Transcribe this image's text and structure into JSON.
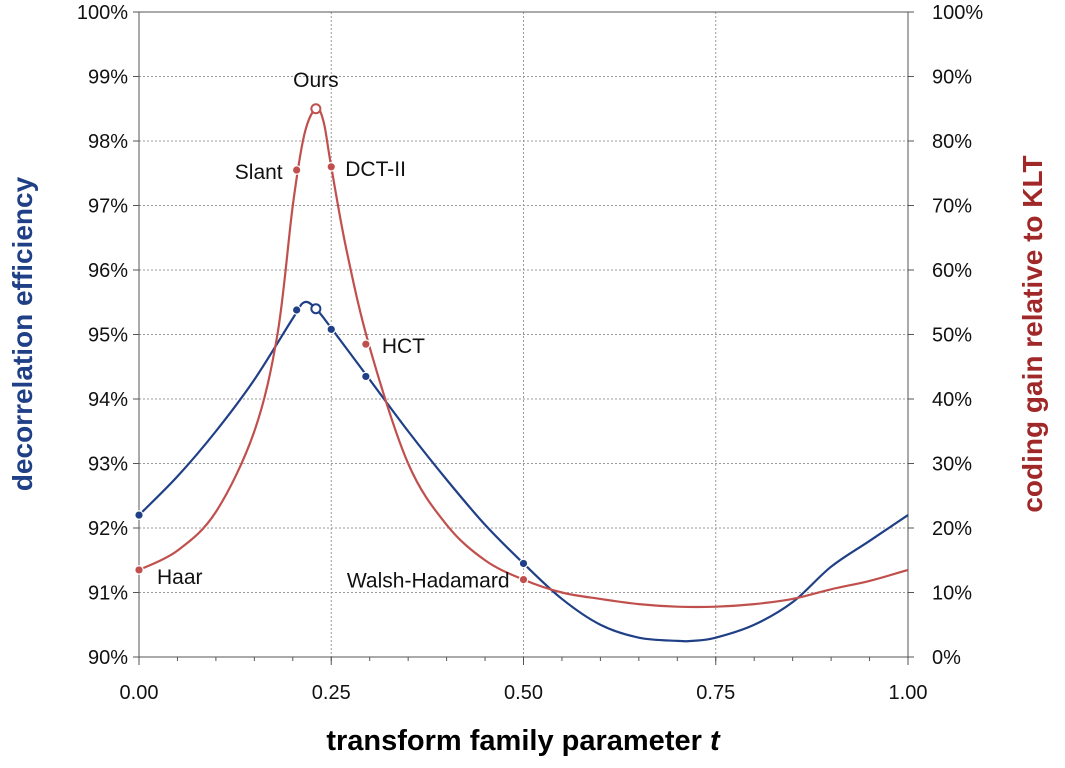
{
  "chart_data": {
    "type": "line",
    "xlabel": "transform family parameter",
    "xlabel_var": "t",
    "ylabel_left": "decorrelation efficiency",
    "ylabel_right": "coding gain relative to KLT",
    "xlim": [
      0,
      1
    ],
    "ylim_left": [
      90,
      100
    ],
    "ylim_right": [
      0,
      100
    ],
    "x_ticks": [
      0,
      0.25,
      0.5,
      0.75,
      1.0
    ],
    "x_tick_labels": [
      "0.00",
      "0.25",
      "0.50",
      "0.75",
      "1.00"
    ],
    "y_left_ticks": [
      90,
      91,
      92,
      93,
      94,
      95,
      96,
      97,
      98,
      99,
      100
    ],
    "y_left_tick_labels": [
      "90%",
      "91%",
      "92%",
      "93%",
      "94%",
      "95%",
      "96%",
      "97%",
      "98%",
      "99%",
      "100%"
    ],
    "y_right_ticks": [
      0,
      10,
      20,
      30,
      40,
      50,
      60,
      70,
      80,
      90,
      100
    ],
    "y_right_tick_labels": [
      "0%",
      "10%",
      "20%",
      "30%",
      "40%",
      "50%",
      "60%",
      "70%",
      "80%",
      "90%",
      "100%"
    ],
    "grid": true,
    "series": [
      {
        "axis": "left",
        "color": "#1f3f86",
        "x": [
          0,
          0.05,
          0.1,
          0.15,
          0.2,
          0.215,
          0.23,
          0.25,
          0.3,
          0.35,
          0.4,
          0.45,
          0.5,
          0.55,
          0.6,
          0.65,
          0.7,
          0.72,
          0.75,
          0.8,
          0.85,
          0.9,
          0.95,
          1.0
        ],
        "values": [
          92.2,
          92.8,
          93.5,
          94.3,
          95.25,
          95.5,
          95.4,
          95.1,
          94.3,
          93.5,
          92.75,
          92.05,
          91.45,
          90.9,
          90.5,
          90.3,
          90.25,
          90.25,
          90.3,
          90.5,
          90.85,
          91.4,
          91.8,
          92.2
        ],
        "markers": [
          {
            "x": 0,
            "y": 92.2,
            "label": ""
          },
          {
            "x": 0.205,
            "y": 95.38,
            "label": ""
          },
          {
            "x": 0.23,
            "y": 95.4,
            "label": "",
            "open": true
          },
          {
            "x": 0.25,
            "y": 95.08,
            "label": ""
          },
          {
            "x": 0.295,
            "y": 94.35,
            "label": ""
          },
          {
            "x": 0.5,
            "y": 91.45,
            "label": ""
          }
        ]
      },
      {
        "axis": "right",
        "color": "#c0504d",
        "x": [
          0,
          0.05,
          0.1,
          0.15,
          0.18,
          0.2,
          0.215,
          0.23,
          0.24,
          0.25,
          0.27,
          0.3,
          0.35,
          0.4,
          0.45,
          0.5,
          0.55,
          0.6,
          0.65,
          0.7,
          0.75,
          0.8,
          0.85,
          0.9,
          0.95,
          1.0
        ],
        "values": [
          13.5,
          16.5,
          22.5,
          35,
          50,
          70,
          81,
          85,
          83,
          76,
          63,
          48,
          30,
          20.5,
          15,
          12,
          10,
          9,
          8.2,
          7.8,
          7.8,
          8.2,
          9,
          10.5,
          11.8,
          13.5
        ],
        "markers": [
          {
            "x": 0,
            "y": 13.5,
            "label": "Haar"
          },
          {
            "x": 0.205,
            "y": 75.5,
            "label": "Slant"
          },
          {
            "x": 0.23,
            "y": 85,
            "label": "Ours",
            "open": true
          },
          {
            "x": 0.25,
            "y": 76,
            "label": "DCT-II"
          },
          {
            "x": 0.295,
            "y": 48.5,
            "label": "HCT"
          },
          {
            "x": 0.5,
            "y": 12,
            "label": "Walsh-Hadamard"
          }
        ]
      }
    ]
  }
}
